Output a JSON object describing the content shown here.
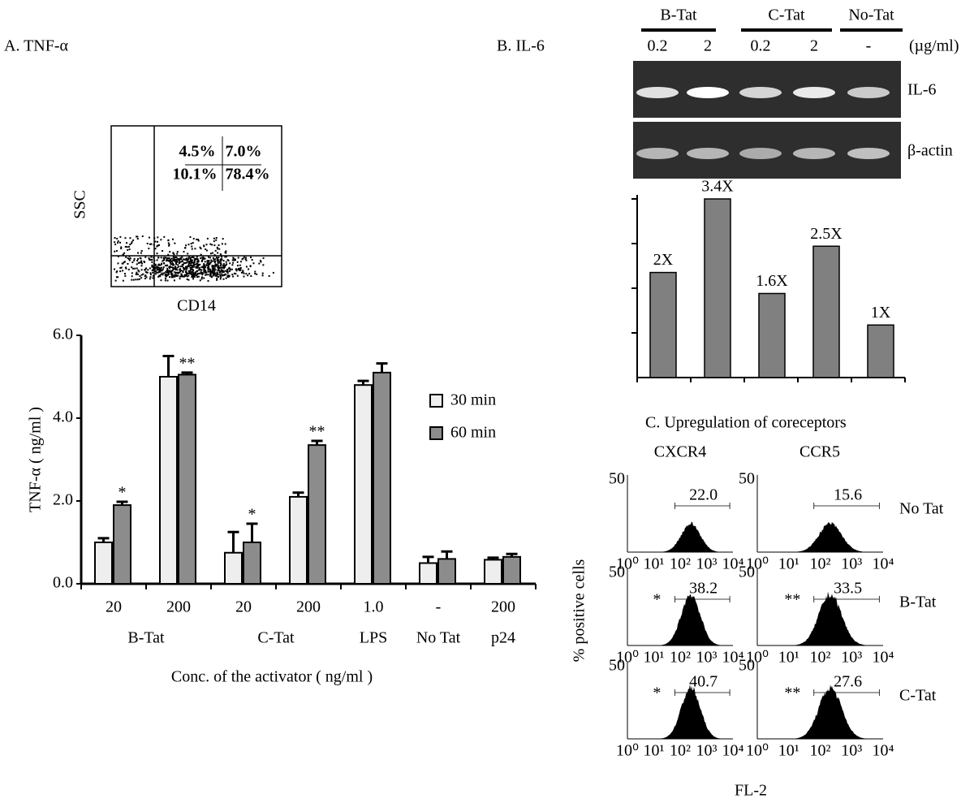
{
  "chart_data": [
    {
      "type": "bar",
      "title": "A. TNF-α",
      "ylabel": "TNF-α ( ng/ml )",
      "xlabel": "Conc. of the activator ( ng/ml )",
      "groups": [
        {
          "label": "B-Tat",
          "categories": [
            "20",
            "200"
          ]
        },
        {
          "label": "C-Tat",
          "categories": [
            "20",
            "200"
          ]
        },
        {
          "label": "LPS",
          "categories": [
            "1.0"
          ]
        },
        {
          "label": "No Tat",
          "categories": [
            "-"
          ]
        },
        {
          "label": "p24",
          "categories": [
            "200"
          ]
        }
      ],
      "series": [
        {
          "name": "30 min",
          "color": "#eeeeee",
          "values": [
            1.0,
            5.0,
            0.75,
            2.1,
            4.8,
            0.5,
            0.58
          ],
          "errors": [
            0.1,
            0.5,
            0.5,
            0.1,
            0.1,
            0.15,
            0.05
          ]
        },
        {
          "name": "60 min",
          "color": "#8c8c8c",
          "values": [
            1.9,
            5.05,
            1.0,
            3.35,
            5.1,
            0.6,
            0.65
          ],
          "errors": [
            0.08,
            0.05,
            0.45,
            0.1,
            0.22,
            0.18,
            0.07
          ],
          "annotations": [
            "*",
            "**",
            "*",
            "**",
            null,
            null,
            null
          ]
        }
      ],
      "ylim": [
        0,
        6
      ],
      "yticks": [
        {
          "value": 0,
          "label": "0.0"
        },
        {
          "value": 2,
          "label": "2.0"
        },
        {
          "value": 4,
          "label": "4.0"
        },
        {
          "value": 6,
          "label": "6.0"
        }
      ]
    },
    {
      "type": "bar",
      "values": [
        2,
        3.4,
        1.6,
        2.5,
        1
      ],
      "value_labels": [
        "2X",
        "3.4X",
        "1.6X",
        "2.5X",
        "1X"
      ],
      "color": "#808080"
    }
  ],
  "flow_cytometry": {
    "ylabel": "SSC",
    "xlabel": "CD14",
    "quadrants": [
      "4.5%",
      "7.0%",
      "10.1%",
      "78.4%"
    ]
  },
  "gel": {
    "title": "B. IL-6",
    "groups": [
      {
        "label": "B-Tat",
        "lanes": [
          "0.2",
          "2"
        ]
      },
      {
        "label": "C-Tat",
        "lanes": [
          "0.2",
          "2"
        ]
      },
      {
        "label": "No-Tat",
        "lanes": [
          "-"
        ]
      }
    ],
    "unit": "(µg/ml)",
    "rows": [
      "IL-6",
      "β-actin"
    ]
  },
  "coreceptors": {
    "title": "C. Upregulation of coreceptors",
    "columns": [
      "CXCR4",
      "CCR5"
    ],
    "rows": [
      "No Tat",
      "B-Tat",
      "C-Tat"
    ],
    "cells": [
      [
        "22.0",
        "15.6"
      ],
      [
        "38.2",
        "33.5"
      ],
      [
        "40.7",
        "27.6"
      ]
    ],
    "significance": [
      [
        null,
        null
      ],
      [
        "*",
        "**"
      ],
      [
        "*",
        "**"
      ]
    ],
    "ytick": "50",
    "xticks": [
      "10⁰",
      "10¹",
      "10²",
      "10³",
      "10⁴"
    ],
    "ylabel": "% positive cells",
    "xlabel": "FL-2"
  }
}
